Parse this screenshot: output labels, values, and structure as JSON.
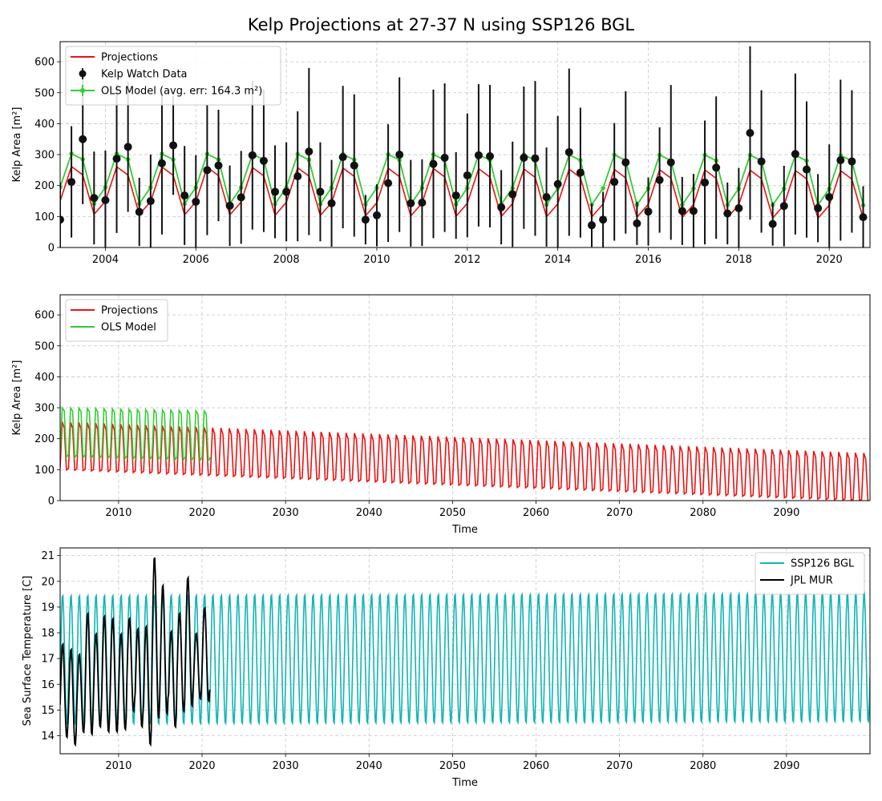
{
  "figure": {
    "title": "Kelp Projections at 27-37 N using SSP126 BGL"
  },
  "colors": {
    "projections": "#ee1111",
    "ols": "#33cc33",
    "obs": "#111111",
    "ssp": "#11b5b5",
    "jpl": "#000000"
  },
  "chart_data": [
    {
      "id": "top",
      "type": "line",
      "ylabel": "Kelp Area [m²]",
      "xlim": [
        2003.0,
        2020.9
      ],
      "ylim": [
        0,
        665
      ],
      "xticks": [
        2004,
        2006,
        2008,
        2010,
        2012,
        2014,
        2016,
        2018,
        2020
      ],
      "yticks": [
        0,
        100,
        200,
        300,
        400,
        500,
        600
      ],
      "grid": true,
      "legend_position": "top-left",
      "legend": [
        "Projections",
        "Kelp Watch Data",
        "OLS Model (avg. err: 164.3 m²)"
      ],
      "projection_model": {
        "start": 2003.0,
        "step": 0.25,
        "seasonal": [
          150,
          262,
          235,
          108
        ],
        "trend_per_year": -0.8
      },
      "ols_model": {
        "start": 2003.0,
        "step": 0.25,
        "seasonal": [
          195,
          303,
          285,
          142
        ],
        "trend_per_year": -0.3
      },
      "observations": {
        "start": 2003.0,
        "step": 0.25,
        "values": [
          90,
          212,
          350,
          160,
          153,
          287,
          325,
          115,
          150,
          272,
          330,
          168,
          148,
          250,
          265,
          135,
          162,
          298,
          280,
          180,
          180,
          230,
          310,
          180,
          143,
          292,
          265,
          90,
          104,
          208,
          300,
          143,
          145,
          270,
          290,
          168,
          233,
          298,
          295,
          130,
          172,
          290,
          288,
          163,
          205,
          308,
          242,
          72,
          90,
          212,
          275,
          78,
          116,
          218,
          275,
          118,
          118,
          210,
          258,
          110,
          127,
          370,
          278,
          76,
          134,
          302,
          252,
          127,
          163,
          282,
          278,
          98
        ],
        "errors": [
          120,
          180,
          210,
          150,
          160,
          240,
          210,
          110,
          150,
          230,
          160,
          160,
          150,
          210,
          180,
          130,
          150,
          240,
          230,
          150,
          160,
          210,
          270,
          160,
          140,
          230,
          230,
          80,
          100,
          190,
          250,
          140,
          140,
          240,
          240,
          140,
          200,
          230,
          230,
          120,
          170,
          230,
          250,
          160,
          220,
          270,
          210,
          70,
          90,
          190,
          230,
          70,
          110,
          170,
          250,
          110,
          120,
          200,
          230,
          100,
          130,
          280,
          230,
          70,
          130,
          260,
          220,
          110,
          170,
          260,
          230,
          100
        ]
      }
    },
    {
      "id": "middle",
      "type": "line",
      "ylabel": "Kelp Area [m²]",
      "xlabel": "Time",
      "xlim": [
        2003.0,
        2100.0
      ],
      "ylim": [
        0,
        665
      ],
      "xticks": [
        2010,
        2020,
        2030,
        2040,
        2050,
        2060,
        2070,
        2080,
        2090
      ],
      "yticks": [
        0,
        100,
        200,
        300,
        400,
        500,
        600
      ],
      "grid": true,
      "legend_position": "top-left",
      "legend": [
        "Projections",
        "OLS Model"
      ],
      "projection_model": {
        "start": 2003.0,
        "end": 2099.75,
        "step": 0.25,
        "seasonal": [
          105,
          255,
          235,
          100
        ],
        "trend_per_year": -1.05
      },
      "ols_model": {
        "start": 2003.0,
        "end": 2021.0,
        "step": 0.25,
        "seasonal": [
          150,
          300,
          290,
          140
        ],
        "trend_per_year": -0.6
      }
    },
    {
      "id": "bottom",
      "type": "line",
      "ylabel": "Sea Surface Temperature [C]",
      "xlabel": "Time",
      "xlim": [
        2003.0,
        2100.0
      ],
      "ylim": [
        13.3,
        21.3
      ],
      "xticks": [
        2010,
        2020,
        2030,
        2040,
        2050,
        2060,
        2070,
        2080,
        2090
      ],
      "yticks": [
        14,
        15,
        16,
        17,
        18,
        19,
        20,
        21
      ],
      "grid": true,
      "legend_position": "top-right",
      "legend": [
        "SSP126 BGL",
        "JPL MUR"
      ],
      "ssp_model": {
        "start": 2003.0,
        "end": 2100.0,
        "step": 0.0833333,
        "min": 14.4,
        "max": 19.5,
        "trend_per_year": 0.001
      },
      "jpl_mur": {
        "start": 2003.0,
        "annual": [
          [
            2003,
            13.9,
            17.6
          ],
          [
            2004,
            13.6,
            17.4
          ],
          [
            2005,
            14.1,
            17.2
          ],
          [
            2006,
            14.0,
            18.8
          ],
          [
            2007,
            14.3,
            18.0
          ],
          [
            2008,
            14.1,
            18.7
          ],
          [
            2009,
            14.1,
            18.6
          ],
          [
            2010,
            14.2,
            18.0
          ],
          [
            2011,
            14.9,
            18.6
          ],
          [
            2012,
            14.3,
            18.2
          ],
          [
            2013,
            13.6,
            18.3
          ],
          [
            2014,
            14.6,
            21.0
          ],
          [
            2015,
            14.8,
            19.9
          ],
          [
            2016,
            14.3,
            18.1
          ],
          [
            2017,
            14.9,
            18.8
          ],
          [
            2018,
            15.1,
            20.2
          ],
          [
            2019,
            15.4,
            18.0
          ],
          [
            2020,
            15.3,
            19.0
          ]
        ]
      }
    }
  ]
}
